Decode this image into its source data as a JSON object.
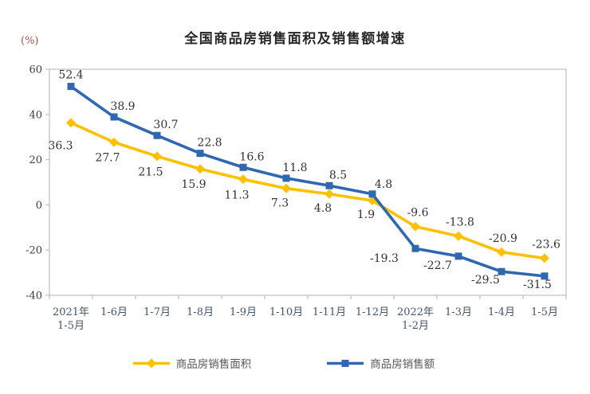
{
  "page": {
    "background": "#FFFFFF"
  },
  "chart_data": {
    "type": "line",
    "title": "全国商品房销售面积及销售额增速",
    "unit_label": "(%)",
    "categories": [
      "2021年\n1-5月",
      "1-6月",
      "1-7月",
      "1-8月",
      "1-9月",
      "1-10月",
      "1-11月",
      "1-12月",
      "2022年\n1-2月",
      "1-3月",
      "1-4月",
      "1-5月"
    ],
    "series": [
      {
        "name": "商品房销售面积",
        "color": "#FFC000",
        "marker": "diamond",
        "values": [
          36.3,
          27.7,
          21.5,
          15.9,
          11.3,
          7.3,
          4.8,
          1.9,
          -9.6,
          -13.8,
          -20.9,
          -23.6
        ]
      },
      {
        "name": "商品房销售额",
        "color": "#2F67B1",
        "marker": "square",
        "values": [
          52.4,
          38.9,
          30.7,
          22.8,
          16.6,
          11.8,
          8.5,
          4.8,
          -19.3,
          -22.7,
          -29.5,
          -31.5
        ]
      }
    ],
    "ylim": [
      -40,
      60
    ],
    "y_tick_step": 20,
    "y_tick_labels": [
      "60",
      "40",
      "20",
      "0",
      "-20",
      "-40"
    ],
    "grid": false,
    "legend_position": "bottom",
    "axis_color": "#BFBFBF",
    "data_label_color": "#333333"
  }
}
